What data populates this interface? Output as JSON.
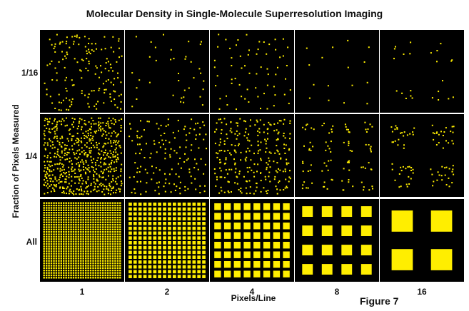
{
  "title": "Molecular Density in Single-Molecule Superresolution Imaging",
  "y_axis_label": "Fraction of Pixels Measured",
  "x_axis_label": "Pixels/Line",
  "figure_label": "Figure 7",
  "rows": [
    {
      "label": "1/16",
      "fraction": 0.0625
    },
    {
      "label": "1/4",
      "fraction": 0.25
    },
    {
      "label": "All",
      "fraction": 1
    }
  ],
  "columns": [
    {
      "label": "1",
      "pixels_per_line": 1
    },
    {
      "label": "2",
      "pixels_per_line": 2
    },
    {
      "label": "4",
      "pixels_per_line": 4
    },
    {
      "label": "8",
      "pixels_per_line": 8
    },
    {
      "label": "16",
      "pixels_per_line": 16
    }
  ],
  "colors": {
    "panel_background": "#000000",
    "molecule": "#ffee00",
    "text": "#111111"
  }
}
